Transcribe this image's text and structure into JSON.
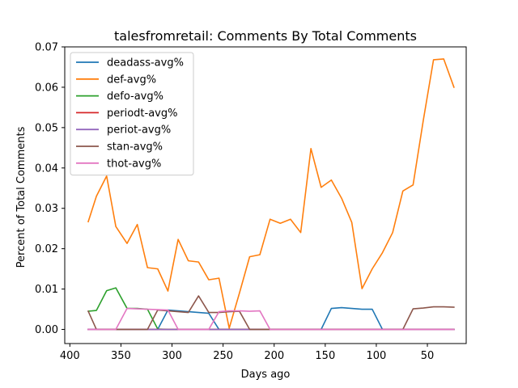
{
  "chart_data": {
    "type": "line",
    "title": "talesfromretail: Comments By Total Comments",
    "xlabel": "Days ago",
    "ylabel": "Percent of Total Comments",
    "xlim": [
      405,
      12
    ],
    "ylim": [
      -0.0035,
      0.07
    ],
    "x_ticks": [
      400,
      350,
      300,
      250,
      200,
      150,
      100,
      50
    ],
    "x_tick_labels": [
      "400",
      "350",
      "300",
      "250",
      "200",
      "150",
      "100",
      "50"
    ],
    "y_ticks": [
      0.0,
      0.01,
      0.02,
      0.03,
      0.04,
      0.05,
      0.06,
      0.07
    ],
    "y_tick_labels": [
      "0.00",
      "0.01",
      "0.02",
      "0.03",
      "0.04",
      "0.05",
      "0.06",
      "0.07"
    ],
    "grid": false,
    "legend_position": "upper-left",
    "x": [
      382,
      374,
      364,
      355,
      344,
      334,
      324,
      314,
      304,
      294,
      284,
      274,
      264,
      254,
      244,
      234,
      224,
      214,
      204,
      194,
      184,
      174,
      164,
      154,
      144,
      134,
      124,
      114,
      104,
      94,
      84,
      74,
      64,
      54,
      44,
      34,
      24
    ],
    "series": [
      {
        "name": "deadass-avg%",
        "color": "#1f77b4",
        "values": [
          0,
          0,
          0,
          0,
          0,
          0,
          0,
          0,
          0.0048,
          0.0046,
          0.0044,
          0.0042,
          0.004,
          0,
          0,
          0,
          0,
          0,
          0,
          0,
          0,
          0,
          0,
          0,
          0.0052,
          0.0054,
          0.0052,
          0.005,
          0.005,
          0,
          0,
          0,
          0,
          0,
          0,
          0,
          0
        ]
      },
      {
        "name": "def-avg%",
        "color": "#ff7f0e",
        "values": [
          0.0267,
          0.033,
          0.038,
          0.0255,
          0.0213,
          0.026,
          0.0153,
          0.015,
          0.0095,
          0.0223,
          0.017,
          0.0167,
          0.0123,
          0.0127,
          0.0003,
          0.009,
          0.018,
          0.0185,
          0.0273,
          0.0263,
          0.0273,
          0.024,
          0.0448,
          0.0352,
          0.037,
          0.0325,
          0.0265,
          0.0101,
          0.015,
          0.019,
          0.024,
          0.0343,
          0.0358,
          0.0518,
          0.0668,
          0.067,
          0.06
        ]
      },
      {
        "name": "defo-avg%",
        "color": "#2ca02c",
        "values": [
          0.0045,
          0.0047,
          0.0096,
          0.0103,
          0.0052,
          0.0052,
          0.005,
          0.0001,
          0,
          0,
          0,
          0,
          0,
          0,
          0,
          0,
          0,
          0,
          0,
          0,
          0,
          0,
          0,
          0,
          0,
          0,
          0,
          0,
          0,
          0,
          0,
          0,
          0,
          0,
          0,
          0,
          0
        ]
      },
      {
        "name": "periodt-avg%",
        "color": "#d62728",
        "values": [
          0,
          0,
          0,
          0,
          0,
          0,
          0,
          0,
          0,
          0,
          0,
          0,
          0,
          0,
          0,
          0,
          0,
          0,
          0,
          0,
          0,
          0,
          0,
          0,
          0,
          0,
          0,
          0,
          0,
          0,
          0,
          0,
          0,
          0,
          0,
          0,
          0
        ]
      },
      {
        "name": "periot-avg%",
        "color": "#9467bd",
        "values": [
          0,
          0,
          0,
          0,
          0,
          0,
          0,
          0,
          0,
          0,
          0,
          0,
          0,
          0,
          0,
          0,
          0,
          0,
          0,
          0,
          0,
          0,
          0,
          0,
          0,
          0,
          0,
          0,
          0,
          0,
          0,
          0,
          0,
          0,
          0,
          0,
          0
        ]
      },
      {
        "name": "stan-avg%",
        "color": "#8c564b",
        "values": [
          0.0045,
          0,
          0,
          0,
          0,
          0,
          0,
          0.0048,
          0.0046,
          0.0044,
          0.0042,
          0.0083,
          0.0042,
          0.0042,
          0.0044,
          0.0045,
          0,
          0,
          0,
          0,
          0,
          0,
          0,
          0,
          0,
          0,
          0,
          0,
          0,
          0,
          0,
          0,
          0.0051,
          0.0053,
          0.0056,
          0.0056,
          0.0055
        ]
      },
      {
        "name": "thot-avg%",
        "color": "#e377c2",
        "values": [
          0,
          0,
          0,
          0,
          0.0052,
          0.0051,
          0.005,
          0.0049,
          0.0048,
          0,
          0,
          0,
          0,
          0.0044,
          0.0046,
          0.0046,
          0.0045,
          0.0046,
          0,
          0,
          0,
          0,
          0,
          0,
          0,
          0,
          0,
          0,
          0,
          0,
          0,
          0,
          0,
          0,
          0,
          0,
          0
        ]
      }
    ]
  }
}
